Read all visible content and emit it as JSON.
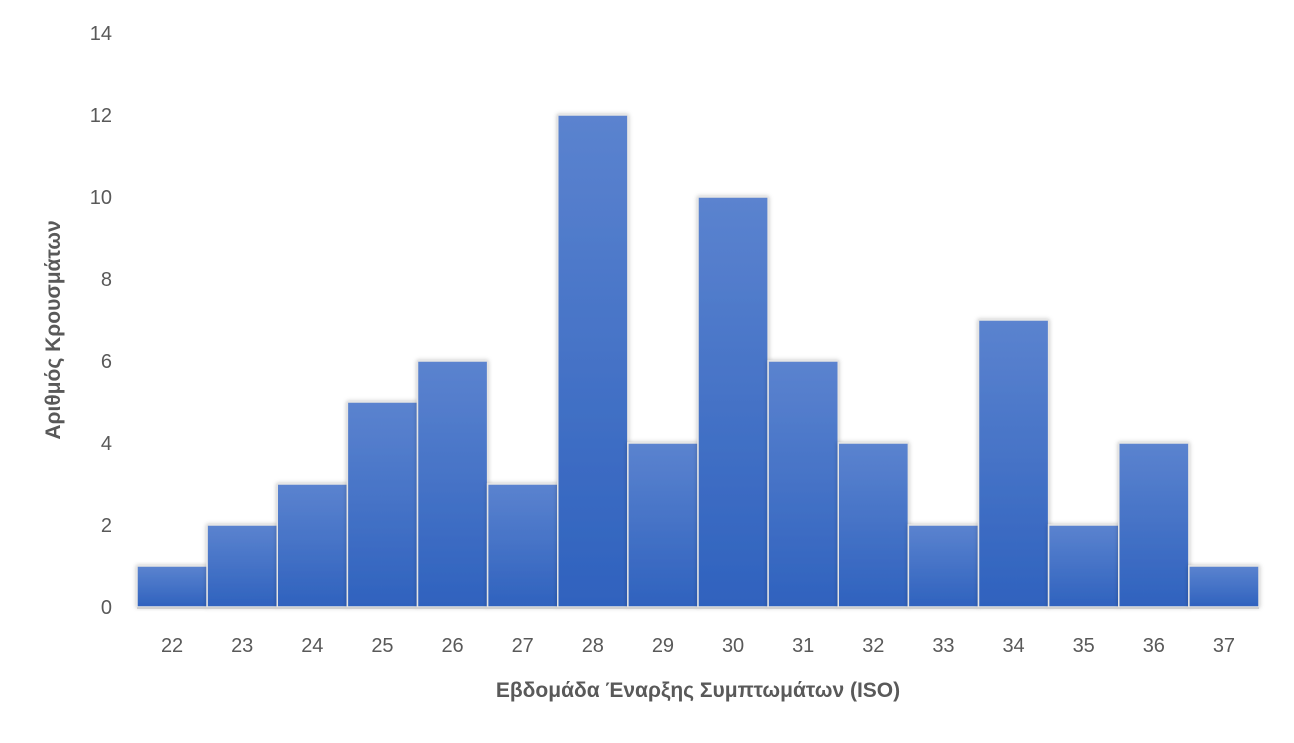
{
  "chart_data": {
    "type": "bar",
    "title": "",
    "xlabel": "Εβδομάδα Έναρξης Συμπτωμάτων (ISO)",
    "ylabel": "Αριθμός Κρουσμάτων",
    "categories": [
      "22",
      "23",
      "24",
      "25",
      "26",
      "27",
      "28",
      "29",
      "30",
      "31",
      "32",
      "33",
      "34",
      "35",
      "36",
      "37"
    ],
    "values": [
      1,
      2,
      3,
      5,
      6,
      3,
      12,
      4,
      10,
      6,
      4,
      2,
      7,
      2,
      4,
      1
    ],
    "ylim": [
      0,
      14
    ],
    "yticks": [
      0,
      2,
      4,
      6,
      8,
      10,
      12,
      14
    ],
    "grid": false,
    "legend": null,
    "bar_color": "#4472C4",
    "bar_color_top": "#5B83CF",
    "bar_color_bottom": "#2F62BE"
  }
}
